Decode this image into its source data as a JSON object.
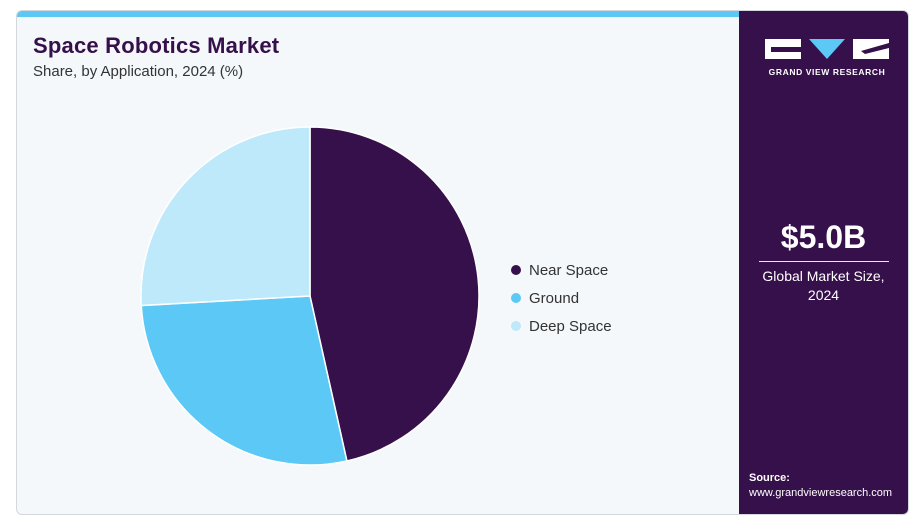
{
  "chart_data": {
    "type": "pie",
    "title": "Space Robotics Market",
    "subtitle": "Share, by Application, 2024 (%)",
    "categories": [
      "Near Space",
      "Ground",
      "Deep Space"
    ],
    "values": [
      46.5,
      27.6,
      25.9
    ],
    "colors": [
      "#36104a",
      "#5bc8f5",
      "#bde9fa"
    ],
    "legend_position": "right"
  },
  "sidebar": {
    "logo_text": "GRAND VIEW RESEARCH",
    "market_value": "$5.0B",
    "market_caption": "Global Market Size, 2024",
    "source_label": "Source:",
    "source_url": "www.grandviewresearch.com"
  }
}
